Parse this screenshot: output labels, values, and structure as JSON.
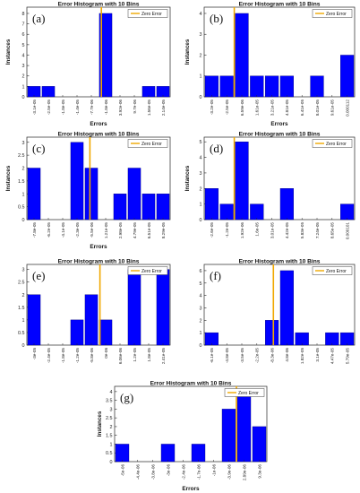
{
  "chart_data": [
    {
      "panel": "(a)",
      "type": "bar",
      "title": "Error Histogram with 10 Bins",
      "xlabel": "Errors",
      "ylabel": "Instances",
      "legend": "Zero Error",
      "legend_position": "top-right",
      "categories": [
        "-3.1e-05",
        "-2.5e-05",
        "-1.8e-05",
        "-1.4e-05",
        "-7.7e-06",
        "-1.8e-06",
        "3.92e-06",
        "9.7e-06",
        "1.56e-05",
        "2.14e-05"
      ],
      "values": [
        1,
        1,
        0,
        0,
        0,
        8,
        0,
        0,
        1,
        1
      ],
      "ylim": [
        0,
        8.6
      ],
      "yticks": [
        0,
        1,
        2,
        3,
        4,
        5,
        6,
        7,
        8
      ],
      "zero_index": 5.2
    },
    {
      "panel": "(b)",
      "type": "bar",
      "title": "Error Histogram with 10 Bins",
      "xlabel": "Errors",
      "ylabel": "Instances",
      "legend": "Zero Error",
      "legend_position": "top-right",
      "categories": [
        "-3.2e-05",
        "-2.5e-05",
        "6.59e-06",
        "1.61e-05",
        "3.21e-05",
        "4.81e-05",
        "6.41e-05",
        "8.01e-05",
        "9.61e-05",
        "0.000112"
      ],
      "values": [
        1,
        1,
        4,
        1,
        1,
        1,
        0,
        1,
        0,
        2
      ],
      "ylim": [
        0,
        4.3
      ],
      "yticks": [
        0,
        1,
        2,
        3,
        4
      ],
      "zero_index": 2.0
    },
    {
      "panel": "(c)",
      "type": "bar",
      "title": "Error Histogram with 10 Bins",
      "xlabel": "Errors",
      "ylabel": "Instances",
      "legend": "Zero Error",
      "legend_position": "top-right",
      "categories": [
        "-7.8e-05",
        "-6.2e-05",
        "-4.1e-05",
        "-2.3e-05",
        "-5.5e-06",
        "1.21e-05",
        "2.98e-05",
        "4.79e-05",
        "6.51e-05",
        "8.29e-05"
      ],
      "values": [
        2,
        0,
        0,
        3,
        2,
        0,
        1,
        2,
        1,
        1
      ],
      "ylim": [
        0,
        3.2
      ],
      "yticks": [
        0,
        0.5,
        1,
        1.5,
        2,
        2.5,
        3
      ],
      "zero_index": 4.4
    },
    {
      "panel": "(d)",
      "type": "bar",
      "title": "Error Histogram with 10 Bins",
      "xlabel": "",
      "ylabel": "Instances",
      "legend": "Zero Error",
      "legend_position": "top-right",
      "categories": [
        "-2.6e-05",
        "-1.2e-05",
        "1.92e-06",
        "1.6e-05",
        "3.01e-05",
        "4.42e-05",
        "5.83e-05",
        "7.24e-05",
        "8.65e-05",
        "0.000101"
      ],
      "values": [
        2,
        1,
        5,
        1,
        0,
        2,
        0,
        0,
        0,
        1
      ],
      "ylim": [
        0,
        5.3
      ],
      "yticks": [
        0,
        1,
        2,
        3,
        4,
        5
      ],
      "zero_index": 2.0
    },
    {
      "panel": "(e)",
      "type": "bar",
      "title": "Error Histogram with 10 Bins",
      "xlabel": "",
      "ylabel": "",
      "legend": "Zero Error",
      "legend_position": "top-right",
      "categories": [
        "-3e-05",
        "-2.4e-05",
        "-1.8e-05",
        "-1.2e-05",
        "-5.8e-06",
        "0e-06",
        "6.06e-06",
        "1.2e-05",
        "1.8e-05",
        "2.41e-05"
      ],
      "values": [
        2,
        0,
        0,
        1,
        2,
        1,
        0,
        3,
        0,
        3
      ],
      "ylim": [
        0,
        3.2
      ],
      "yticks": [
        0,
        0.5,
        1,
        1.5,
        2,
        2.5,
        3
      ],
      "zero_index": 5.1
    },
    {
      "panel": "(f)",
      "type": "bar",
      "title": "Error Histogram with 10 Bins",
      "xlabel": "",
      "ylabel": "",
      "legend": "Zero Error",
      "legend_position": "top-right",
      "categories": [
        "-6.1e-05",
        "-4.8e-05",
        "-3.5e-05",
        "-2.2e-05",
        "-8.3e-06",
        "4.8e-06",
        "1.82e-05",
        "3.1e-05",
        "4.47e-05",
        "5.79e-05"
      ],
      "values": [
        1,
        0,
        0,
        0,
        2,
        6,
        1,
        0,
        1,
        1
      ],
      "ylim": [
        0,
        6.5
      ],
      "yticks": [
        0,
        1,
        2,
        3,
        4,
        5,
        6
      ],
      "zero_index": 4.6
    },
    {
      "panel": "(g)",
      "type": "bar",
      "title": "Error Histogram with 10 Bins",
      "xlabel": "Errors",
      "ylabel": "Instances",
      "legend": "Zero Error",
      "legend_position": "top-right",
      "categories": [
        "-5e-06",
        "-4.4e-06",
        "-3.8e-06",
        "-3e-06",
        "-2.4e-06",
        "-1.7e-06",
        "-1e-06",
        "-3.9e-06",
        "2.89e-06",
        "9.3e-06"
      ],
      "values": [
        1,
        0,
        0,
        1,
        0,
        1,
        0,
        3,
        4,
        2
      ],
      "ylim": [
        0,
        4.3
      ],
      "yticks": [
        0,
        0.5,
        1,
        1.5,
        2,
        2.5,
        3,
        3.5,
        4
      ],
      "zero_index": 8.0
    }
  ]
}
